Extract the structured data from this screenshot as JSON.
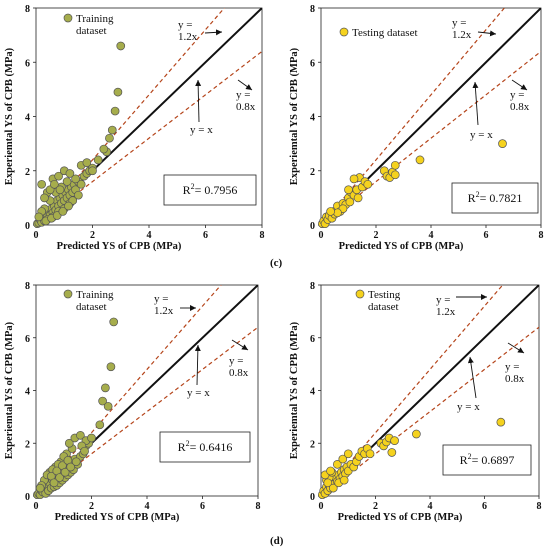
{
  "panel_labels": [
    "(c)",
    "(d)"
  ],
  "chart_data": [
    {
      "type": "scatter",
      "title": "",
      "xlabel": "Predicted YS of CPB (MPa)",
      "ylabel": "Experiemtal YS of CPB (MPa)",
      "xlim": [
        0,
        8
      ],
      "ylim": [
        0,
        8
      ],
      "xticks": [
        "0",
        "2",
        "4",
        "6",
        "8"
      ],
      "yticks": [
        "0",
        "2",
        "4",
        "6",
        "8"
      ],
      "legend": "Training dataset",
      "legend_lines": [
        "Training",
        "dataset"
      ],
      "annotations": {
        "upper": [
          "y =",
          "1.2x"
        ],
        "lower": [
          "y =",
          "0.8x"
        ],
        "identity": "y = x"
      },
      "r2_label": "R² = 0.7956",
      "r2_prefix": "R",
      "r2_sup": "2",
      "r2_value": "= 0.7956",
      "marker_color": "#a6ad4c",
      "series": [
        {
          "points": [
            [
              0.05,
              0.05
            ],
            [
              0.1,
              0.08
            ],
            [
              0.15,
              0.2
            ],
            [
              0.2,
              0.1
            ],
            [
              0.25,
              0.3
            ],
            [
              0.3,
              0.15
            ],
            [
              0.35,
              0.4
            ],
            [
              0.4,
              0.3
            ],
            [
              0.45,
              0.5
            ],
            [
              0.5,
              0.35
            ],
            [
              0.55,
              0.6
            ],
            [
              0.6,
              0.45
            ],
            [
              0.65,
              0.7
            ],
            [
              0.7,
              0.55
            ],
            [
              0.75,
              0.9
            ],
            [
              0.8,
              0.7
            ],
            [
              0.85,
              1.0
            ],
            [
              0.9,
              0.8
            ],
            [
              0.95,
              1.1
            ],
            [
              1.0,
              0.9
            ],
            [
              1.05,
              1.2
            ],
            [
              1.1,
              1.0
            ],
            [
              1.15,
              1.3
            ],
            [
              1.2,
              1.1
            ],
            [
              1.25,
              1.4
            ],
            [
              1.3,
              1.2
            ],
            [
              1.35,
              1.5
            ],
            [
              1.4,
              1.3
            ],
            [
              1.5,
              1.6
            ],
            [
              1.6,
              1.5
            ],
            [
              1.7,
              1.8
            ],
            [
              1.8,
              1.9
            ],
            [
              1.9,
              2.0
            ],
            [
              2.0,
              2.1
            ],
            [
              0.3,
              0.6
            ],
            [
              0.5,
              0.9
            ],
            [
              0.7,
              1.2
            ],
            [
              0.9,
              1.4
            ],
            [
              1.1,
              1.6
            ],
            [
              0.4,
              0.2
            ],
            [
              0.6,
              0.3
            ],
            [
              0.8,
              0.5
            ],
            [
              1.0,
              0.6
            ],
            [
              1.2,
              0.8
            ],
            [
              0.2,
              0.5
            ],
            [
              0.35,
              0.15
            ],
            [
              0.55,
              0.25
            ],
            [
              1.3,
              0.9
            ],
            [
              1.5,
              1.1
            ],
            [
              0.1,
              0.3
            ],
            [
              0.2,
              1.5
            ],
            [
              0.4,
              1.2
            ],
            [
              0.3,
              1.0
            ],
            [
              0.5,
              1.3
            ],
            [
              0.6,
              1.7
            ],
            [
              0.8,
              1.8
            ],
            [
              1.0,
              2.0
            ],
            [
              1.2,
              1.9
            ],
            [
              1.4,
              1.7
            ],
            [
              1.6,
              2.2
            ],
            [
              1.8,
              2.3
            ],
            [
              2.0,
              2.0
            ],
            [
              2.5,
              2.7
            ],
            [
              2.7,
              3.5
            ],
            [
              2.6,
              3.2
            ],
            [
              2.8,
              4.2
            ],
            [
              2.9,
              4.9
            ],
            [
              3.0,
              6.6
            ],
            [
              2.4,
              2.8
            ],
            [
              2.2,
              2.4
            ],
            [
              0.75,
              0.35
            ],
            [
              0.95,
              0.5
            ],
            [
              1.15,
              0.7
            ],
            [
              0.65,
              1.5
            ],
            [
              0.85,
              1.3
            ]
          ]
        }
      ]
    },
    {
      "type": "scatter",
      "title": "",
      "xlabel": "Predicted YS of CPB (MPa)",
      "ylabel": "Experiemtal YS of CPB (MPa)",
      "xlim": [
        0,
        8
      ],
      "ylim": [
        0,
        8
      ],
      "xticks": [
        "0",
        "2",
        "4",
        "6",
        "8"
      ],
      "yticks": [
        "0",
        "2",
        "4",
        "6",
        "8"
      ],
      "legend": "Testing dataset",
      "legend_lines": [
        "Testing dataset"
      ],
      "annotations": {
        "upper": [
          "y =",
          "1.2x"
        ],
        "lower": [
          "y =",
          "0.8x"
        ],
        "identity": "y = x"
      },
      "r2_label": "R² = 0.7821",
      "r2_prefix": "R",
      "r2_sup": "2",
      "r2_value": "= 0.7821",
      "marker_color": "#f5d21e",
      "series": [
        {
          "points": [
            [
              0.05,
              0.05
            ],
            [
              0.1,
              0.15
            ],
            [
              0.15,
              0.05
            ],
            [
              0.2,
              0.3
            ],
            [
              0.25,
              0.2
            ],
            [
              0.3,
              0.35
            ],
            [
              0.4,
              0.25
            ],
            [
              0.45,
              0.5
            ],
            [
              0.5,
              0.4
            ],
            [
              0.6,
              0.7
            ],
            [
              0.7,
              0.5
            ],
            [
              0.8,
              0.8
            ],
            [
              0.9,
              0.75
            ],
            [
              1.0,
              1.0
            ],
            [
              1.05,
              0.85
            ],
            [
              1.1,
              1.2
            ],
            [
              1.2,
              1.1
            ],
            [
              1.3,
              1.3
            ],
            [
              1.35,
              1.0
            ],
            [
              1.4,
              1.75
            ],
            [
              1.5,
              1.4
            ],
            [
              1.6,
              1.6
            ],
            [
              1.2,
              1.7
            ],
            [
              1.0,
              1.3
            ],
            [
              0.8,
              0.6
            ],
            [
              0.6,
              0.45
            ],
            [
              0.35,
              0.5
            ],
            [
              2.3,
              2.0
            ],
            [
              2.4,
              1.8
            ],
            [
              2.5,
              1.75
            ],
            [
              2.6,
              1.95
            ],
            [
              2.7,
              2.2
            ],
            [
              2.7,
              1.85
            ],
            [
              3.6,
              2.4
            ],
            [
              6.6,
              3.0
            ],
            [
              1.7,
              1.5
            ]
          ]
        }
      ]
    },
    {
      "type": "scatter",
      "title": "",
      "xlabel": "Predicted YS of CPB (MPa)",
      "ylabel": "Experiemtal YS of CPB (MPa)",
      "xlim": [
        0,
        8
      ],
      "ylim": [
        0,
        8
      ],
      "xticks": [
        "0",
        "2",
        "4",
        "6",
        "8"
      ],
      "yticks": [
        "0",
        "2",
        "4",
        "6",
        "8"
      ],
      "legend": "Training dataset",
      "legend_lines": [
        "Training",
        "dataset"
      ],
      "annotations": {
        "upper": [
          "y =",
          "1.2x"
        ],
        "lower": [
          "y =",
          "0.8x"
        ],
        "identity": "y = x"
      },
      "r2_label": "R² = 0.6416",
      "r2_prefix": "R",
      "r2_sup": "2",
      "r2_value": "= 0.6416",
      "marker_color": "#a6ad4c",
      "series": [
        {
          "points": [
            [
              0.05,
              0.05
            ],
            [
              0.1,
              0.1
            ],
            [
              0.15,
              0.05
            ],
            [
              0.2,
              0.2
            ],
            [
              0.25,
              0.15
            ],
            [
              0.3,
              0.3
            ],
            [
              0.35,
              0.1
            ],
            [
              0.4,
              0.4
            ],
            [
              0.45,
              0.2
            ],
            [
              0.5,
              0.5
            ],
            [
              0.55,
              0.3
            ],
            [
              0.6,
              0.6
            ],
            [
              0.65,
              0.35
            ],
            [
              0.7,
              0.7
            ],
            [
              0.75,
              0.4
            ],
            [
              0.8,
              0.8
            ],
            [
              0.85,
              0.5
            ],
            [
              0.9,
              0.9
            ],
            [
              0.95,
              0.6
            ],
            [
              1.0,
              1.0
            ],
            [
              1.05,
              0.7
            ],
            [
              1.1,
              1.1
            ],
            [
              1.15,
              0.8
            ],
            [
              1.2,
              1.2
            ],
            [
              1.25,
              0.9
            ],
            [
              1.3,
              1.3
            ],
            [
              1.35,
              1.0
            ],
            [
              1.4,
              1.4
            ],
            [
              1.5,
              1.2
            ],
            [
              1.6,
              1.5
            ],
            [
              1.7,
              1.6
            ],
            [
              1.8,
              1.9
            ],
            [
              1.9,
              2.0
            ],
            [
              0.3,
              0.6
            ],
            [
              0.5,
              0.9
            ],
            [
              0.7,
              1.1
            ],
            [
              0.9,
              1.3
            ],
            [
              1.1,
              1.6
            ],
            [
              1.3,
              1.8
            ],
            [
              0.4,
              0.8
            ],
            [
              0.6,
              1.0
            ],
            [
              0.8,
              1.2
            ],
            [
              1.0,
              1.5
            ],
            [
              1.2,
              2.0
            ],
            [
              1.4,
              2.2
            ],
            [
              1.6,
              2.3
            ],
            [
              1.8,
              2.1
            ],
            [
              2.0,
              2.2
            ],
            [
              2.3,
              2.7
            ],
            [
              2.4,
              3.6
            ],
            [
              2.5,
              4.1
            ],
            [
              2.6,
              3.4
            ],
            [
              2.7,
              4.9
            ],
            [
              2.8,
              6.6
            ],
            [
              0.2,
              0.4
            ],
            [
              0.15,
              0.3
            ],
            [
              0.55,
              0.75
            ],
            [
              0.75,
              0.95
            ],
            [
              0.95,
              1.15
            ],
            [
              1.15,
              1.35
            ],
            [
              0.65,
              0.5
            ],
            [
              0.85,
              0.7
            ],
            [
              1.05,
              0.9
            ],
            [
              1.25,
              1.1
            ],
            [
              1.45,
              1.3
            ],
            [
              1.65,
              1.9
            ],
            [
              1.75,
              1.7
            ]
          ]
        }
      ]
    },
    {
      "type": "scatter",
      "title": "",
      "xlabel": "Predicted YS of CPB (MPa)",
      "ylabel": "Experiemtal YS of CPB (MPa)",
      "xlim": [
        0,
        8
      ],
      "ylim": [
        0,
        8
      ],
      "xticks": [
        "0",
        "2",
        "4",
        "6",
        "8"
      ],
      "yticks": [
        "0",
        "2",
        "4",
        "6",
        "8"
      ],
      "legend": "Testing dataset",
      "legend_lines": [
        "Testing",
        "dataset"
      ],
      "annotations": {
        "upper": [
          "y =",
          "1.2x"
        ],
        "lower": [
          "y =",
          "0.8x"
        ],
        "identity": "y = x"
      },
      "r2_label": "R² = 0.6897",
      "r2_prefix": "R",
      "r2_sup": "2",
      "r2_value": "= 0.6897",
      "marker_color": "#f5d21e",
      "series": [
        {
          "points": [
            [
              0.05,
              0.05
            ],
            [
              0.1,
              0.2
            ],
            [
              0.15,
              0.1
            ],
            [
              0.2,
              0.35
            ],
            [
              0.25,
              0.2
            ],
            [
              0.3,
              0.4
            ],
            [
              0.35,
              0.3
            ],
            [
              0.4,
              0.5
            ],
            [
              0.45,
              0.6
            ],
            [
              0.5,
              0.45
            ],
            [
              0.55,
              0.7
            ],
            [
              0.6,
              0.55
            ],
            [
              0.65,
              0.8
            ],
            [
              0.7,
              0.65
            ],
            [
              0.75,
              0.9
            ],
            [
              0.8,
              0.75
            ],
            [
              0.85,
              1.0
            ],
            [
              0.9,
              0.85
            ],
            [
              0.95,
              1.1
            ],
            [
              1.0,
              0.95
            ],
            [
              1.1,
              1.2
            ],
            [
              1.2,
              1.1
            ],
            [
              1.3,
              1.3
            ],
            [
              1.4,
              1.5
            ],
            [
              1.5,
              1.7
            ],
            [
              1.6,
              1.6
            ],
            [
              0.2,
              0.6
            ],
            [
              0.3,
              0.7
            ],
            [
              0.4,
              0.9
            ],
            [
              0.6,
              1.2
            ],
            [
              0.8,
              1.4
            ],
            [
              1.0,
              1.6
            ],
            [
              0.25,
              0.5
            ],
            [
              0.45,
              0.3
            ],
            [
              0.65,
              0.5
            ],
            [
              0.85,
              0.6
            ],
            [
              2.2,
              2.0
            ],
            [
              2.3,
              1.9
            ],
            [
              2.4,
              2.05
            ],
            [
              2.5,
              2.2
            ],
            [
              2.6,
              1.65
            ],
            [
              2.7,
              2.1
            ],
            [
              3.5,
              2.35
            ],
            [
              6.6,
              2.8
            ],
            [
              1.7,
              1.8
            ],
            [
              1.8,
              1.6
            ],
            [
              0.15,
              0.8
            ],
            [
              0.35,
              0.95
            ]
          ]
        }
      ]
    }
  ]
}
